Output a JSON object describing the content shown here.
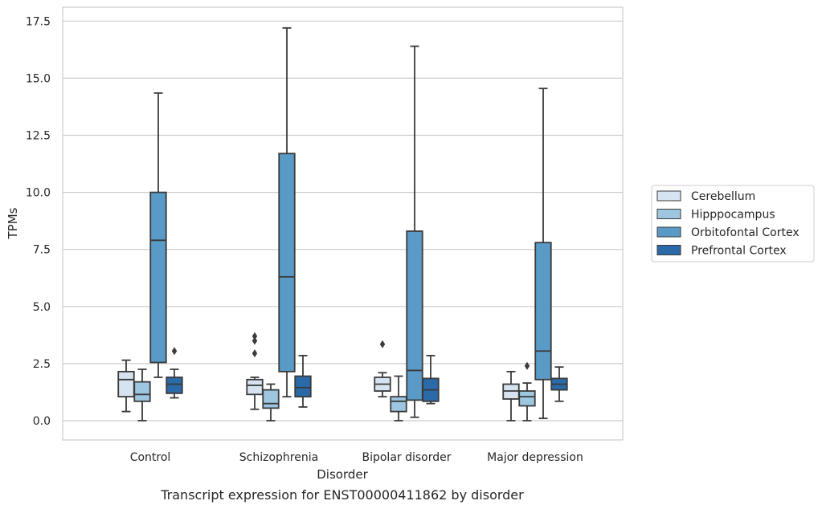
{
  "chart_data": {
    "type": "box",
    "title": "",
    "caption": "Transcript expression for ENST00000411862 by disorder",
    "xlabel": "Disorder",
    "ylabel": "TPMs",
    "ylim": [
      -0.8,
      18.1
    ],
    "yticks": [
      0.0,
      2.5,
      5.0,
      7.5,
      10.0,
      12.5,
      15.0,
      17.5
    ],
    "ytick_labels": [
      "0.0",
      "2.5",
      "5.0",
      "7.5",
      "10.0",
      "12.5",
      "15.0",
      "17.5"
    ],
    "categories": [
      "Control",
      "Schizophrenia",
      "Bipolar disorder",
      "Major depression"
    ],
    "grid": true,
    "legend_position": "right",
    "series": [
      {
        "name": "Cerebellum",
        "color": "#d6e4f2",
        "boxes": [
          {
            "whislo": 0.4,
            "q1": 1.05,
            "median": 1.8,
            "q3": 2.15,
            "whishi": 2.65,
            "fliers": []
          },
          {
            "whislo": 0.5,
            "q1": 1.15,
            "median": 1.55,
            "q3": 1.8,
            "whishi": 1.9,
            "fliers": [
              3.7,
              3.5,
              2.95
            ]
          },
          {
            "whislo": 1.05,
            "q1": 1.3,
            "median": 1.6,
            "q3": 1.9,
            "whishi": 2.1,
            "fliers": [
              3.35
            ]
          },
          {
            "whislo": 0.0,
            "q1": 0.95,
            "median": 1.3,
            "q3": 1.6,
            "whishi": 2.15,
            "fliers": []
          }
        ]
      },
      {
        "name": "Hipppocampus",
        "color": "#9dc6e0",
        "boxes": [
          {
            "whislo": 0.0,
            "q1": 0.85,
            "median": 1.15,
            "q3": 1.7,
            "whishi": 2.25,
            "fliers": []
          },
          {
            "whislo": 0.0,
            "q1": 0.55,
            "median": 0.75,
            "q3": 1.35,
            "whishi": 1.6,
            "fliers": []
          },
          {
            "whislo": 0.0,
            "q1": 0.4,
            "median": 0.85,
            "q3": 1.05,
            "whishi": 1.95,
            "fliers": []
          },
          {
            "whislo": 0.0,
            "q1": 0.65,
            "median": 1.05,
            "q3": 1.3,
            "whishi": 1.65,
            "fliers": [
              2.4
            ]
          }
        ]
      },
      {
        "name": "Orbitofontal Cortex",
        "color": "#5a9ac6",
        "boxes": [
          {
            "whislo": 1.9,
            "q1": 2.55,
            "median": 7.9,
            "q3": 10.0,
            "whishi": 14.35,
            "fliers": []
          },
          {
            "whislo": 1.05,
            "q1": 2.15,
            "median": 6.3,
            "q3": 11.7,
            "whishi": 17.2,
            "fliers": []
          },
          {
            "whislo": 0.15,
            "q1": 0.9,
            "median": 2.2,
            "q3": 8.3,
            "whishi": 16.4,
            "fliers": []
          },
          {
            "whislo": 0.1,
            "q1": 1.8,
            "median": 3.05,
            "q3": 7.8,
            "whishi": 14.55,
            "fliers": []
          }
        ]
      },
      {
        "name": "Prefrontal Cortex",
        "color": "#2b6aa8",
        "boxes": [
          {
            "whislo": 1.0,
            "q1": 1.2,
            "median": 1.6,
            "q3": 1.9,
            "whishi": 2.25,
            "fliers": [
              3.05
            ]
          },
          {
            "whislo": 0.6,
            "q1": 1.05,
            "median": 1.45,
            "q3": 1.95,
            "whishi": 2.85,
            "fliers": []
          },
          {
            "whislo": 0.75,
            "q1": 0.85,
            "median": 1.35,
            "q3": 1.85,
            "whishi": 2.85,
            "fliers": []
          },
          {
            "whislo": 0.85,
            "q1": 1.35,
            "median": 1.6,
            "q3": 1.85,
            "whishi": 2.35,
            "fliers": []
          }
        ]
      }
    ]
  }
}
